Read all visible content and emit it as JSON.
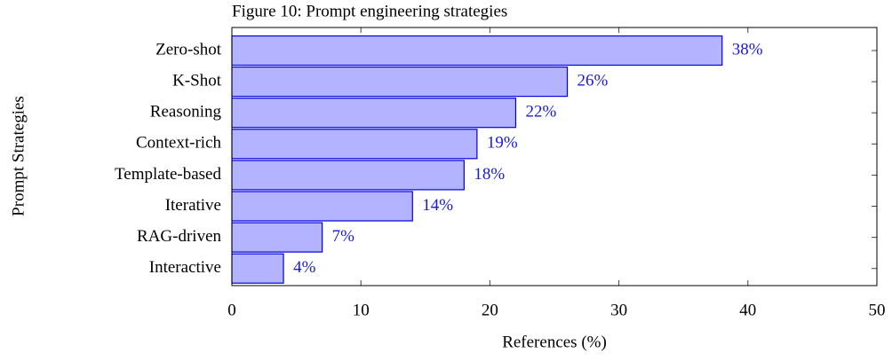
{
  "chart_data": {
    "type": "bar",
    "orientation": "horizontal",
    "title": "Figure 10: Prompt engineering strategies",
    "xlabel": "References (%)",
    "ylabel": "Prompt Strategies",
    "categories": [
      "Zero-shot",
      "K-Shot",
      "Reasoning",
      "Context-rich",
      "Template-based",
      "Iterative",
      "RAG-driven",
      "Interactive"
    ],
    "values": [
      38,
      26,
      22,
      19,
      18,
      14,
      7,
      4
    ],
    "value_labels": [
      "38%",
      "26%",
      "22%",
      "19%",
      "18%",
      "14%",
      "7%",
      "4%"
    ],
    "color": "#b3b3ff",
    "edge_color": "#0000e0",
    "label_color": "#1a1ad6",
    "xlim": [
      0,
      50
    ],
    "xticks": [
      0,
      10,
      20,
      30,
      40,
      50
    ],
    "grid": false
  }
}
